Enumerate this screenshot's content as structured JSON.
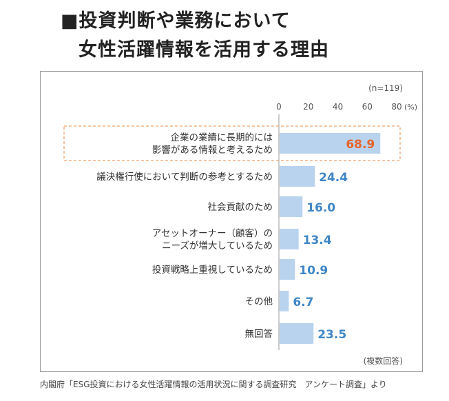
{
  "title": {
    "line1": "■投資判断や業務において",
    "line2": "女性活躍情報を活用する理由"
  },
  "sample_note": "(n=119)",
  "footnote": "(複数回答)",
  "source": "内閣府「ESG投資における女性活躍情報の活用状況に関する調査研究　アンケート調査」より",
  "colors": {
    "bar": "#b9d3ee",
    "value_text": "#3f86c6",
    "highlight_value": "#e8622c",
    "highlight_border": "#f0a06a",
    "axis": "#9a9a9a"
  },
  "chart_data": {
    "type": "bar",
    "orientation": "horizontal",
    "unit": "(%)",
    "xlim": [
      0,
      80
    ],
    "x_ticks": [
      "0",
      "20",
      "40",
      "60",
      "80"
    ],
    "categories": [
      [
        "企業の業績に長期的には",
        "影響がある情報と考えるため"
      ],
      [
        "議決権行使において判断の参考とするため"
      ],
      [
        "社会貢献のため"
      ],
      [
        "アセットオーナー（顧客）の",
        "ニーズが増大しているため"
      ],
      [
        "投資戦略上重視しているため"
      ],
      [
        "その他"
      ],
      [
        "無回答"
      ]
    ],
    "values": [
      68.9,
      24.4,
      16.0,
      13.4,
      10.9,
      6.7,
      23.5
    ],
    "value_labels": [
      "68.9",
      "24.4",
      "16.0",
      "13.4",
      "10.9",
      "6.7",
      "23.5"
    ],
    "highlight_index": 0
  }
}
